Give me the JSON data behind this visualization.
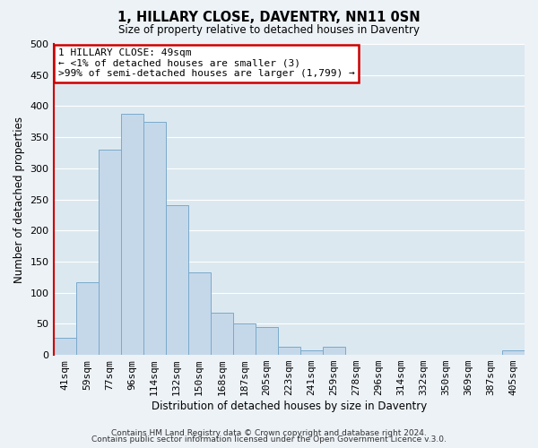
{
  "title": "1, HILLARY CLOSE, DAVENTRY, NN11 0SN",
  "subtitle": "Size of property relative to detached houses in Daventry",
  "xlabel": "Distribution of detached houses by size in Daventry",
  "ylabel": "Number of detached properties",
  "bin_labels": [
    "41sqm",
    "59sqm",
    "77sqm",
    "96sqm",
    "114sqm",
    "132sqm",
    "150sqm",
    "168sqm",
    "187sqm",
    "205sqm",
    "223sqm",
    "241sqm",
    "259sqm",
    "278sqm",
    "296sqm",
    "314sqm",
    "332sqm",
    "350sqm",
    "369sqm",
    "387sqm",
    "405sqm"
  ],
  "bar_heights": [
    28,
    117,
    330,
    388,
    375,
    240,
    133,
    68,
    50,
    45,
    13,
    8,
    13,
    0,
    0,
    0,
    0,
    0,
    0,
    0,
    7
  ],
  "bar_color": "#c5d8ea",
  "bar_edge_color": "#7aaacb",
  "annotation_line1": "1 HILLARY CLOSE: 49sqm",
  "annotation_line2": "← <1% of detached houses are smaller (3)",
  "annotation_line3": ">99% of semi-detached houses are larger (1,799) →",
  "annotation_box_color": "#cc0000",
  "annotation_fill_color": "#ffffff",
  "ylim": [
    0,
    500
  ],
  "yticks": [
    0,
    50,
    100,
    150,
    200,
    250,
    300,
    350,
    400,
    450,
    500
  ],
  "footer_line1": "Contains HM Land Registry data © Crown copyright and database right 2024.",
  "footer_line2": "Contains public sector information licensed under the Open Government Licence v.3.0.",
  "bg_color": "#edf2f7",
  "plot_bg_color": "#dce8f0",
  "grid_color": "#ffffff"
}
